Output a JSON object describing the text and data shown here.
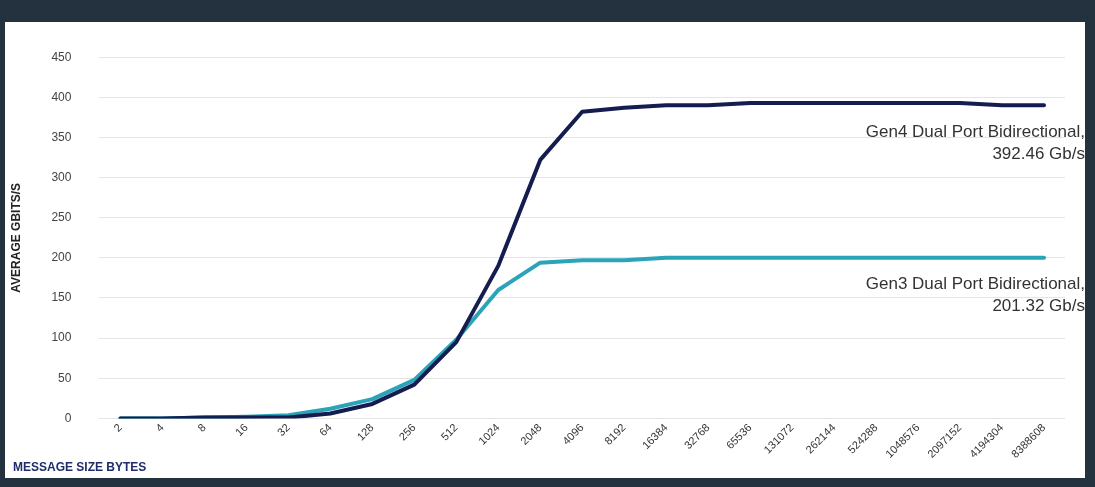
{
  "chart_data": {
    "type": "line",
    "xlabel": "MESSAGE SIZE BYTES",
    "ylabel": "AVERAGE GBITS/S",
    "categories": [
      "2",
      "4",
      "8",
      "16",
      "32",
      "64",
      "128",
      "256",
      "512",
      "1024",
      "2048",
      "4096",
      "8192",
      "16384",
      "32768",
      "65536",
      "131072",
      "262144",
      "524288",
      "1048576",
      "2097152",
      "4194304",
      "8388608"
    ],
    "series": [
      {
        "name": "Gen4 Dual Port Bidirectional, 392.46 Gb/s",
        "color": "#151c4f",
        "values": [
          0,
          0,
          1,
          1,
          1,
          6,
          18,
          42,
          95,
          190,
          322,
          382,
          387,
          390,
          390,
          393,
          393,
          393,
          393,
          393,
          393,
          390,
          390
        ]
      },
      {
        "name": "Gen3 Dual Port Bidirectional, 201.32 Gb/s",
        "color": "#2ba3b8",
        "values": [
          0,
          0,
          1,
          2,
          4,
          12,
          24,
          48,
          98,
          160,
          194,
          197,
          197,
          200,
          200,
          200,
          200,
          200,
          200,
          200,
          200,
          200,
          200
        ]
      }
    ],
    "ylim": [
      0,
      450
    ],
    "yticks": [
      0,
      50,
      100,
      150,
      200,
      250,
      300,
      350,
      400,
      450
    ],
    "grid": "y",
    "legend": false,
    "marker": "none",
    "line_style": "solid"
  }
}
